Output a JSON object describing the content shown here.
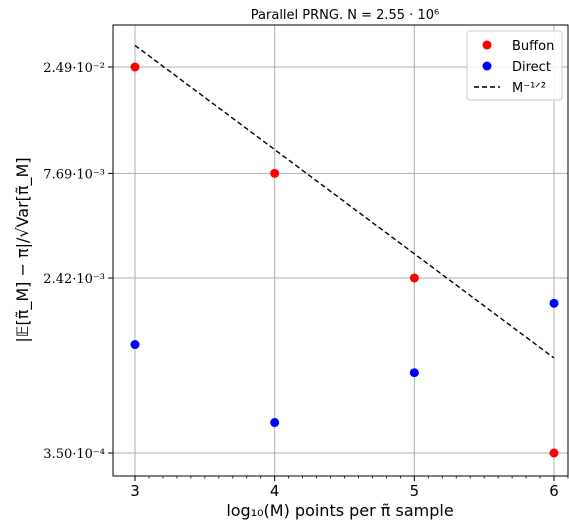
{
  "chart_data": {
    "type": "scatter",
    "title": "Parallel PRNG. N = 2.55 · 10⁶",
    "xlabel": "log₁₀(M) points per π̃ sample",
    "ylabel": "|𝔼[π̃_M] − π|/√Var[π̃_M]",
    "x_scale": "linear",
    "y_scale": "log",
    "xlim": [
      2.9,
      6.1
    ],
    "x_ticks": [
      3,
      4,
      5,
      6
    ],
    "x_tick_labels": [
      "3",
      "4",
      "5",
      "6"
    ],
    "y_ticks": [
      0.0249,
      0.00769,
      0.00242,
      0.00035
    ],
    "y_tick_labels": [
      "2.49·10⁻²",
      "7.69·10⁻³",
      "2.42·10⁻³",
      "3.50·10⁻⁴"
    ],
    "grid": true,
    "legend_position": "top-right",
    "series": [
      {
        "name": "Buffon",
        "style": "markers",
        "color": "#ff0000",
        "x": [
          3,
          4,
          5,
          6
        ],
        "y": [
          0.0249,
          0.00769,
          0.00242,
          0.00035
        ]
      },
      {
        "name": "Direct",
        "style": "markers",
        "color": "#0000ff",
        "x": [
          3,
          4,
          5,
          6
        ],
        "y": [
          0.00116,
          0.00049,
          0.00085,
          0.00183
        ]
      },
      {
        "name": "M⁻¹ᐟ²",
        "style": "dashed-line",
        "color": "#000000",
        "x": [
          3,
          6
        ],
        "y": [
          0.0316,
          0.001
        ]
      }
    ]
  }
}
